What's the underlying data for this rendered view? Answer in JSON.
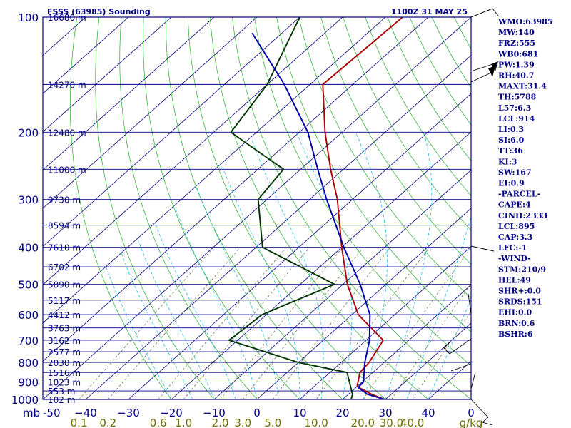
{
  "chart_data": {
    "type": "line",
    "title_left": "FSSS (63985) Sounding",
    "title_right": "1100Z 31 MAY 25",
    "y_unit_label": "mb",
    "y_axis": {
      "scale": "log",
      "range": [
        1000,
        100
      ],
      "ticks": [
        100,
        200,
        300,
        400,
        500,
        600,
        700,
        800,
        900,
        1000
      ]
    },
    "x_axis": {
      "range_at_1000mb": [
        -50,
        50
      ],
      "tick_labels": [
        "-50",
        "−40",
        "−30",
        "−20",
        "−10",
        "0",
        "10",
        "20",
        "30",
        "40",
        "0"
      ]
    },
    "mixing_ratio_labels": [
      "0.1",
      "0.2",
      "0.6",
      "1.0",
      "2.0",
      "3.0",
      "5.0",
      "10.0",
      "20.0",
      "30.0",
      "40.0"
    ],
    "mixing_ratio_unit": "g/kg",
    "height_labels": [
      {
        "p": 100,
        "label": "16680 m"
      },
      {
        "p": 150,
        "label": "14270 m"
      },
      {
        "p": 200,
        "label": "12480 m"
      },
      {
        "p": 250,
        "label": "11000 m"
      },
      {
        "p": 300,
        "label": "9730 m"
      },
      {
        "p": 350,
        "label": "8594 m"
      },
      {
        "p": 400,
        "label": "7610 m"
      },
      {
        "p": 450,
        "label": "6702 m"
      },
      {
        "p": 500,
        "label": "5890 m"
      },
      {
        "p": 550,
        "label": "5117 m"
      },
      {
        "p": 600,
        "label": "4412 m"
      },
      {
        "p": 650,
        "label": "3763 m"
      },
      {
        "p": 700,
        "label": "3162 m"
      },
      {
        "p": 750,
        "label": "2577 m"
      },
      {
        "p": 800,
        "label": "2030 m"
      },
      {
        "p": 850,
        "label": "1516 m"
      },
      {
        "p": 900,
        "label": "1023 m"
      },
      {
        "p": 950,
        "label": "553 m"
      },
      {
        "p": 1000,
        "label": "102 m"
      }
    ],
    "series": [
      {
        "color": "#aa0000",
        "points": [
          [
            1000,
            29.8
          ],
          [
            970,
            25.5
          ],
          [
            925,
            20.0
          ],
          [
            850,
            17.0
          ],
          [
            800,
            16.5
          ],
          [
            700,
            14.0
          ],
          [
            600,
            1.5
          ],
          [
            500,
            -9.0
          ],
          [
            400,
            -20.0
          ],
          [
            300,
            -33.5
          ],
          [
            250,
            -43.0
          ],
          [
            200,
            -54.0
          ],
          [
            150,
            -67.0
          ],
          [
            100,
            -66.0
          ]
        ]
      },
      {
        "color": "#003300",
        "points": [
          [
            1000,
            22.0
          ],
          [
            970,
            21.0
          ],
          [
            850,
            14.0
          ],
          [
            800,
            0.0
          ],
          [
            700,
            -22.0
          ],
          [
            600,
            -21.0
          ],
          [
            500,
            -12.0
          ],
          [
            400,
            -38.5
          ],
          [
            300,
            -52.0
          ],
          [
            250,
            -54.0
          ],
          [
            200,
            -76.0
          ],
          [
            150,
            -80.0
          ],
          [
            100,
            -90.0
          ]
        ]
      },
      {
        "color": "#0000aa",
        "points": [
          [
            1000,
            29.8
          ],
          [
            970,
            24.5
          ],
          [
            930,
            20.5
          ],
          [
            900,
            20.3
          ],
          [
            800,
            15.5
          ],
          [
            700,
            10.8
          ],
          [
            600,
            4.2
          ],
          [
            500,
            -6.0
          ],
          [
            400,
            -19.5
          ],
          [
            300,
            -36.0
          ],
          [
            250,
            -46.0
          ],
          [
            200,
            -58.0
          ],
          [
            150,
            -76.0
          ],
          [
            110,
            -97.0
          ]
        ]
      }
    ],
    "indices": [
      "WMO:63985",
      "MW:140",
      "FRZ:555",
      "WB0:681",
      "PW:1.39",
      "RH:40.7",
      "MAXT:31.4",
      "TH:5788",
      "L57:6.3",
      "LCL:914",
      "LI:0.3",
      "SI:6.0",
      "TT:36",
      "KI:3",
      "SW:167",
      "EI:0.9",
      "-PARCEL-",
      "CAPE:4",
      "CINH:2333",
      "LCL:895",
      "CAP:3.3",
      "LFC:-1",
      "-WIND-",
      "STM:210/9",
      "HEL:49",
      "SHR+:0.0",
      "SRDS:151",
      "EHI:0.0",
      "BRN:0.6",
      "BSHR:6"
    ],
    "grid": true,
    "colors": {
      "frame": "#000080",
      "isobar": "#000080",
      "isotherm": "#000080",
      "dry_adiabat": "#22aa22",
      "moist_adiabat": "#22bbee",
      "mixing_ratio": "#556b2f",
      "mixing_label": "#6b6b00",
      "text": "#000080"
    }
  }
}
